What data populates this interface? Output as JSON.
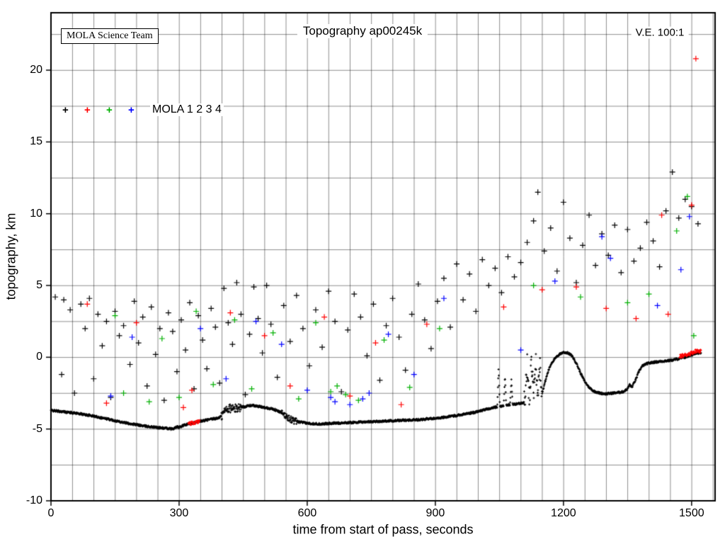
{
  "header": {
    "title": "Topography ap00245k",
    "credit_box": "MOLA Science Team",
    "ve_label": "V.E. 100:1"
  },
  "legend": {
    "label": "MOLA 1 2 3 4",
    "markers": [
      {
        "name": "MOLA 1",
        "glyph": "+",
        "color": "#000000"
      },
      {
        "name": "MOLA 2",
        "glyph": "+",
        "color": "#ff0000"
      },
      {
        "name": "MOLA 3",
        "glyph": "+",
        "color": "#00b000"
      },
      {
        "name": "MOLA 4",
        "glyph": "+",
        "color": "#0000ff"
      }
    ]
  },
  "chart_data": {
    "type": "scatter",
    "title": "Topography ap00245k",
    "xlabel": "time from start of pass, seconds",
    "ylabel": "topography, km",
    "xlim": [
      0,
      1555
    ],
    "ylim": [
      -10,
      24
    ],
    "xticks": [
      0,
      300,
      600,
      900,
      1200,
      1500
    ],
    "yticks": [
      -10,
      -5,
      0,
      5,
      10,
      15,
      20
    ],
    "grid": {
      "x_interval": 50,
      "y_interval": 2.5,
      "color": "#000000",
      "on": true
    },
    "legend_position": "upper-left-inside",
    "ground_track_profile": {
      "name": "surface profile (dense trace)",
      "color": "#000000",
      "base_noise_km": 0.07,
      "step_s": 0.7,
      "points": [
        [
          0,
          -3.7
        ],
        [
          30,
          -3.8
        ],
        [
          60,
          -3.9
        ],
        [
          100,
          -4.1
        ],
        [
          140,
          -4.35
        ],
        [
          180,
          -4.6
        ],
        [
          220,
          -4.8
        ],
        [
          250,
          -4.9
        ],
        [
          270,
          -4.95
        ],
        [
          285,
          -5.0
        ],
        [
          295,
          -4.85
        ],
        [
          300,
          -4.9
        ],
        [
          310,
          -4.75
        ],
        [
          330,
          -4.6
        ],
        [
          350,
          -4.45
        ],
        [
          370,
          -4.35
        ],
        [
          390,
          -4.25
        ],
        [
          400,
          -4.1
        ],
        [
          405,
          -3.8
        ],
        [
          410,
          -3.6
        ],
        [
          420,
          -3.55
        ],
        [
          430,
          -3.6
        ],
        [
          440,
          -3.5
        ],
        [
          450,
          -3.45
        ],
        [
          460,
          -3.4
        ],
        [
          470,
          -3.35
        ],
        [
          480,
          -3.4
        ],
        [
          490,
          -3.45
        ],
        [
          500,
          -3.5
        ],
        [
          510,
          -3.55
        ],
        [
          520,
          -3.6
        ],
        [
          535,
          -3.8
        ],
        [
          550,
          -4.1
        ],
        [
          560,
          -4.3
        ],
        [
          570,
          -4.45
        ],
        [
          580,
          -4.5
        ],
        [
          600,
          -4.6
        ],
        [
          630,
          -4.65
        ],
        [
          660,
          -4.6
        ],
        [
          700,
          -4.55
        ],
        [
          740,
          -4.5
        ],
        [
          780,
          -4.45
        ],
        [
          820,
          -4.4
        ],
        [
          860,
          -4.35
        ],
        [
          900,
          -4.25
        ],
        [
          930,
          -4.15
        ],
        [
          960,
          -4.0
        ],
        [
          990,
          -3.85
        ],
        [
          1010,
          -3.7
        ],
        [
          1030,
          -3.55
        ],
        [
          1045,
          -3.45
        ],
        [
          1048,
          -0.8
        ],
        [
          1051,
          -3.4
        ],
        [
          1060,
          -3.4
        ],
        [
          1063,
          -1.3
        ],
        [
          1066,
          -3.35
        ],
        [
          1075,
          -3.3
        ],
        [
          1078,
          -1.6
        ],
        [
          1081,
          -3.3
        ],
        [
          1090,
          -3.25
        ],
        [
          1100,
          -3.2
        ],
        [
          1110,
          -3.1
        ],
        [
          1115,
          -0.5
        ],
        [
          1120,
          -3.0
        ],
        [
          1125,
          -0.3
        ],
        [
          1130,
          -2.9
        ],
        [
          1135,
          -0.2
        ],
        [
          1140,
          -2.8
        ],
        [
          1145,
          -0.4
        ],
        [
          1150,
          -2.5
        ],
        [
          1158,
          -1.6
        ],
        [
          1165,
          -0.9
        ],
        [
          1172,
          -0.4
        ],
        [
          1180,
          -0.1
        ],
        [
          1190,
          0.2
        ],
        [
          1200,
          0.35
        ],
        [
          1210,
          0.3
        ],
        [
          1220,
          0.1
        ],
        [
          1230,
          -0.4
        ],
        [
          1240,
          -1.1
        ],
        [
          1250,
          -1.7
        ],
        [
          1260,
          -2.1
        ],
        [
          1270,
          -2.35
        ],
        [
          1285,
          -2.5
        ],
        [
          1300,
          -2.55
        ],
        [
          1315,
          -2.5
        ],
        [
          1330,
          -2.45
        ],
        [
          1340,
          -2.4
        ],
        [
          1350,
          -2.2
        ],
        [
          1355,
          -1.9
        ],
        [
          1360,
          -2.1
        ],
        [
          1370,
          -1.5
        ],
        [
          1378,
          -0.9
        ],
        [
          1385,
          -0.6
        ],
        [
          1395,
          -0.45
        ],
        [
          1410,
          -0.35
        ],
        [
          1425,
          -0.3
        ],
        [
          1440,
          -0.25
        ],
        [
          1455,
          -0.2
        ],
        [
          1470,
          -0.1
        ],
        [
          1485,
          0.0
        ],
        [
          1500,
          0.15
        ],
        [
          1510,
          0.3
        ],
        [
          1522,
          0.3
        ]
      ],
      "noisy_ranges": [
        {
          "from": 398,
          "to": 445,
          "amp": 0.3
        },
        {
          "from": 540,
          "to": 575,
          "amp": 0.22
        },
        {
          "from": 1108,
          "to": 1150,
          "amp": 0.85
        }
      ],
      "red_overlay_ranges": [
        {
          "from": 322,
          "to": 348,
          "lift": 0.0,
          "color": "#ff0000"
        },
        {
          "from": 1472,
          "to": 1522,
          "lift": 0.15,
          "color": "#ff0000"
        }
      ]
    },
    "scatter_series": [
      {
        "name": "MOLA 1",
        "color": "#000000",
        "points": [
          [
            10,
            4.2
          ],
          [
            25,
            -1.2
          ],
          [
            30,
            4.0
          ],
          [
            45,
            3.3
          ],
          [
            55,
            -2.5
          ],
          [
            70,
            3.7
          ],
          [
            80,
            2.0
          ],
          [
            90,
            4.1
          ],
          [
            100,
            -1.5
          ],
          [
            110,
            3.0
          ],
          [
            120,
            0.8
          ],
          [
            130,
            2.5
          ],
          [
            140,
            -2.8
          ],
          [
            150,
            3.2
          ],
          [
            160,
            1.5
          ],
          [
            170,
            2.2
          ],
          [
            185,
            -0.5
          ],
          [
            195,
            3.9
          ],
          [
            205,
            1.0
          ],
          [
            215,
            2.8
          ],
          [
            225,
            -2.0
          ],
          [
            235,
            3.5
          ],
          [
            245,
            0.2
          ],
          [
            255,
            2.0
          ],
          [
            265,
            -3.0
          ],
          [
            275,
            3.1
          ],
          [
            285,
            1.8
          ],
          [
            295,
            -1.0
          ],
          [
            305,
            2.6
          ],
          [
            315,
            0.5
          ],
          [
            325,
            3.8
          ],
          [
            335,
            -2.2
          ],
          [
            345,
            2.9
          ],
          [
            355,
            1.2
          ],
          [
            365,
            -0.8
          ],
          [
            375,
            3.4
          ],
          [
            385,
            2.1
          ],
          [
            395,
            -1.8
          ],
          [
            405,
            4.8
          ],
          [
            415,
            2.4
          ],
          [
            425,
            0.9
          ],
          [
            435,
            5.2
          ],
          [
            445,
            3.0
          ],
          [
            455,
            -2.6
          ],
          [
            465,
            1.6
          ],
          [
            475,
            4.9
          ],
          [
            485,
            2.7
          ],
          [
            495,
            0.3
          ],
          [
            505,
            5.0
          ],
          [
            515,
            2.3
          ],
          [
            530,
            -1.4
          ],
          [
            545,
            3.6
          ],
          [
            560,
            1.1
          ],
          [
            575,
            4.3
          ],
          [
            590,
            2.0
          ],
          [
            605,
            -0.6
          ],
          [
            620,
            3.3
          ],
          [
            635,
            0.7
          ],
          [
            650,
            4.6
          ],
          [
            665,
            2.5
          ],
          [
            680,
            -2.4
          ],
          [
            695,
            1.9
          ],
          [
            710,
            4.4
          ],
          [
            725,
            2.8
          ],
          [
            740,
            0.1
          ],
          [
            755,
            3.7
          ],
          [
            770,
            -1.6
          ],
          [
            785,
            2.2
          ],
          [
            800,
            4.1
          ],
          [
            815,
            1.4
          ],
          [
            830,
            -0.9
          ],
          [
            845,
            3.0
          ],
          [
            860,
            5.1
          ],
          [
            875,
            2.6
          ],
          [
            890,
            0.6
          ],
          [
            905,
            3.9
          ],
          [
            920,
            5.5
          ],
          [
            935,
            2.1
          ],
          [
            950,
            6.5
          ],
          [
            965,
            4.0
          ],
          [
            980,
            5.8
          ],
          [
            995,
            3.2
          ],
          [
            1010,
            6.8
          ],
          [
            1025,
            5.0
          ],
          [
            1040,
            6.2
          ],
          [
            1055,
            4.5
          ],
          [
            1070,
            7.0
          ],
          [
            1085,
            5.6
          ],
          [
            1100,
            6.6
          ],
          [
            1115,
            8.0
          ],
          [
            1130,
            9.5
          ],
          [
            1140,
            11.5
          ],
          [
            1155,
            7.4
          ],
          [
            1170,
            9.0
          ],
          [
            1185,
            6.0
          ],
          [
            1200,
            10.8
          ],
          [
            1215,
            8.3
          ],
          [
            1230,
            5.2
          ],
          [
            1245,
            7.8
          ],
          [
            1260,
            9.9
          ],
          [
            1275,
            6.4
          ],
          [
            1290,
            8.6
          ],
          [
            1305,
            7.1
          ],
          [
            1320,
            9.2
          ],
          [
            1335,
            5.9
          ],
          [
            1350,
            8.9
          ],
          [
            1365,
            6.7
          ],
          [
            1380,
            7.6
          ],
          [
            1395,
            9.4
          ],
          [
            1410,
            8.1
          ],
          [
            1425,
            6.3
          ],
          [
            1440,
            10.2
          ],
          [
            1455,
            12.9
          ],
          [
            1470,
            9.7
          ],
          [
            1485,
            11.0
          ],
          [
            1500,
            10.5
          ],
          [
            1515,
            9.3
          ]
        ]
      },
      {
        "name": "MOLA 2",
        "color": "#ff0000",
        "points": [
          [
            85,
            3.7
          ],
          [
            130,
            -3.2
          ],
          [
            200,
            2.4
          ],
          [
            310,
            -3.5
          ],
          [
            330,
            -2.3
          ],
          [
            420,
            3.1
          ],
          [
            500,
            1.5
          ],
          [
            560,
            -2.0
          ],
          [
            640,
            2.8
          ],
          [
            700,
            -2.7
          ],
          [
            760,
            1.0
          ],
          [
            820,
            -3.3
          ],
          [
            880,
            2.3
          ],
          [
            1060,
            3.5
          ],
          [
            1150,
            4.7
          ],
          [
            1230,
            4.9
          ],
          [
            1300,
            3.4
          ],
          [
            1370,
            2.7
          ],
          [
            1430,
            9.9
          ],
          [
            1445,
            3.0
          ],
          [
            1500,
            10.6
          ],
          [
            1510,
            20.8
          ]
        ]
      },
      {
        "name": "MOLA 3",
        "color": "#00b000",
        "points": [
          [
            150,
            2.9
          ],
          [
            170,
            -2.5
          ],
          [
            230,
            -3.1
          ],
          [
            260,
            1.3
          ],
          [
            300,
            -2.8
          ],
          [
            340,
            3.2
          ],
          [
            380,
            -1.9
          ],
          [
            430,
            2.6
          ],
          [
            470,
            -2.2
          ],
          [
            520,
            1.7
          ],
          [
            580,
            -2.9
          ],
          [
            620,
            2.4
          ],
          [
            655,
            -2.4
          ],
          [
            670,
            -2.0
          ],
          [
            690,
            -2.6
          ],
          [
            720,
            -3.0
          ],
          [
            780,
            1.2
          ],
          [
            840,
            -2.1
          ],
          [
            910,
            2.0
          ],
          [
            1130,
            5.0
          ],
          [
            1240,
            4.2
          ],
          [
            1350,
            3.8
          ],
          [
            1400,
            4.4
          ],
          [
            1465,
            8.8
          ],
          [
            1490,
            11.2
          ],
          [
            1505,
            1.5
          ]
        ]
      },
      {
        "name": "MOLA 4",
        "color": "#0000ff",
        "points": [
          [
            140,
            -2.7
          ],
          [
            190,
            1.4
          ],
          [
            350,
            2.0
          ],
          [
            410,
            -1.5
          ],
          [
            480,
            2.5
          ],
          [
            540,
            0.9
          ],
          [
            600,
            -2.3
          ],
          [
            655,
            -2.8
          ],
          [
            665,
            -3.1
          ],
          [
            700,
            -3.3
          ],
          [
            730,
            -2.9
          ],
          [
            745,
            -2.5
          ],
          [
            790,
            1.6
          ],
          [
            850,
            -1.2
          ],
          [
            920,
            4.1
          ],
          [
            1100,
            0.5
          ],
          [
            1180,
            5.3
          ],
          [
            1290,
            8.4
          ],
          [
            1310,
            6.9
          ],
          [
            1420,
            3.6
          ],
          [
            1475,
            6.1
          ],
          [
            1495,
            9.8
          ]
        ]
      }
    ]
  }
}
